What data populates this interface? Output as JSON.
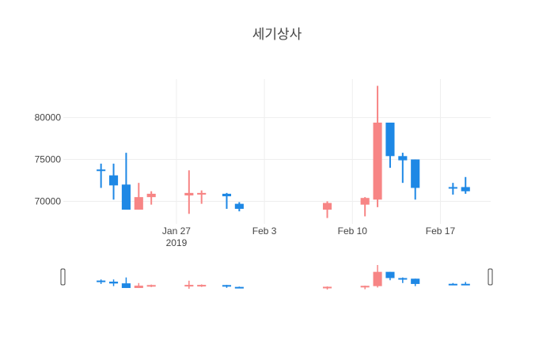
{
  "chart_data": {
    "type": "candlestick",
    "title": "세기상사",
    "xlabel": "",
    "ylabel": "",
    "ylim": [
      67300,
      84600
    ],
    "y_ticks": [
      70000,
      75000,
      80000
    ],
    "x_range": [
      "2019-01-18",
      "2019-02-21"
    ],
    "x_ticks": [
      {
        "date": "2019-01-27",
        "label": "Jan 27",
        "sublabel": "2019"
      },
      {
        "date": "2019-02-03",
        "label": "Feb 3",
        "sublabel": ""
      },
      {
        "date": "2019-02-10",
        "label": "Feb 10",
        "sublabel": ""
      },
      {
        "date": "2019-02-17",
        "label": "Feb 17",
        "sublabel": ""
      }
    ],
    "grid": true,
    "legend": "none",
    "rangeslider": true,
    "increasing_color": "#f78585",
    "decreasing_color": "#1e88e5",
    "series": [
      {
        "dates": [
          "2019-01-21",
          "2019-01-22",
          "2019-01-23",
          "2019-01-24",
          "2019-01-25",
          "2019-01-28",
          "2019-01-29",
          "2019-01-31",
          "2019-02-01",
          "2019-02-08",
          "2019-02-11",
          "2019-02-12",
          "2019-02-13",
          "2019-02-14",
          "2019-02-15",
          "2019-02-18",
          "2019-02-19"
        ],
        "open": [
          73800,
          73100,
          72000,
          69000,
          70500,
          70700,
          70800,
          70900,
          69700,
          69000,
          69600,
          70200,
          79400,
          75400,
          75000,
          71700,
          71700
        ],
        "high": [
          74500,
          74500,
          75800,
          72200,
          71200,
          73700,
          71300,
          71000,
          69900,
          70000,
          70500,
          83800,
          79400,
          75800,
          75000,
          72200,
          72900
        ],
        "low": [
          71600,
          70200,
          69000,
          69000,
          69600,
          68500,
          69700,
          69100,
          68800,
          68000,
          68200,
          69300,
          74000,
          72200,
          70200,
          70800,
          70900
        ],
        "close": [
          73700,
          71900,
          69000,
          70500,
          70900,
          71000,
          71000,
          70600,
          69100,
          69800,
          70400,
          79400,
          75400,
          74900,
          71600,
          71600,
          71200
        ]
      }
    ]
  }
}
